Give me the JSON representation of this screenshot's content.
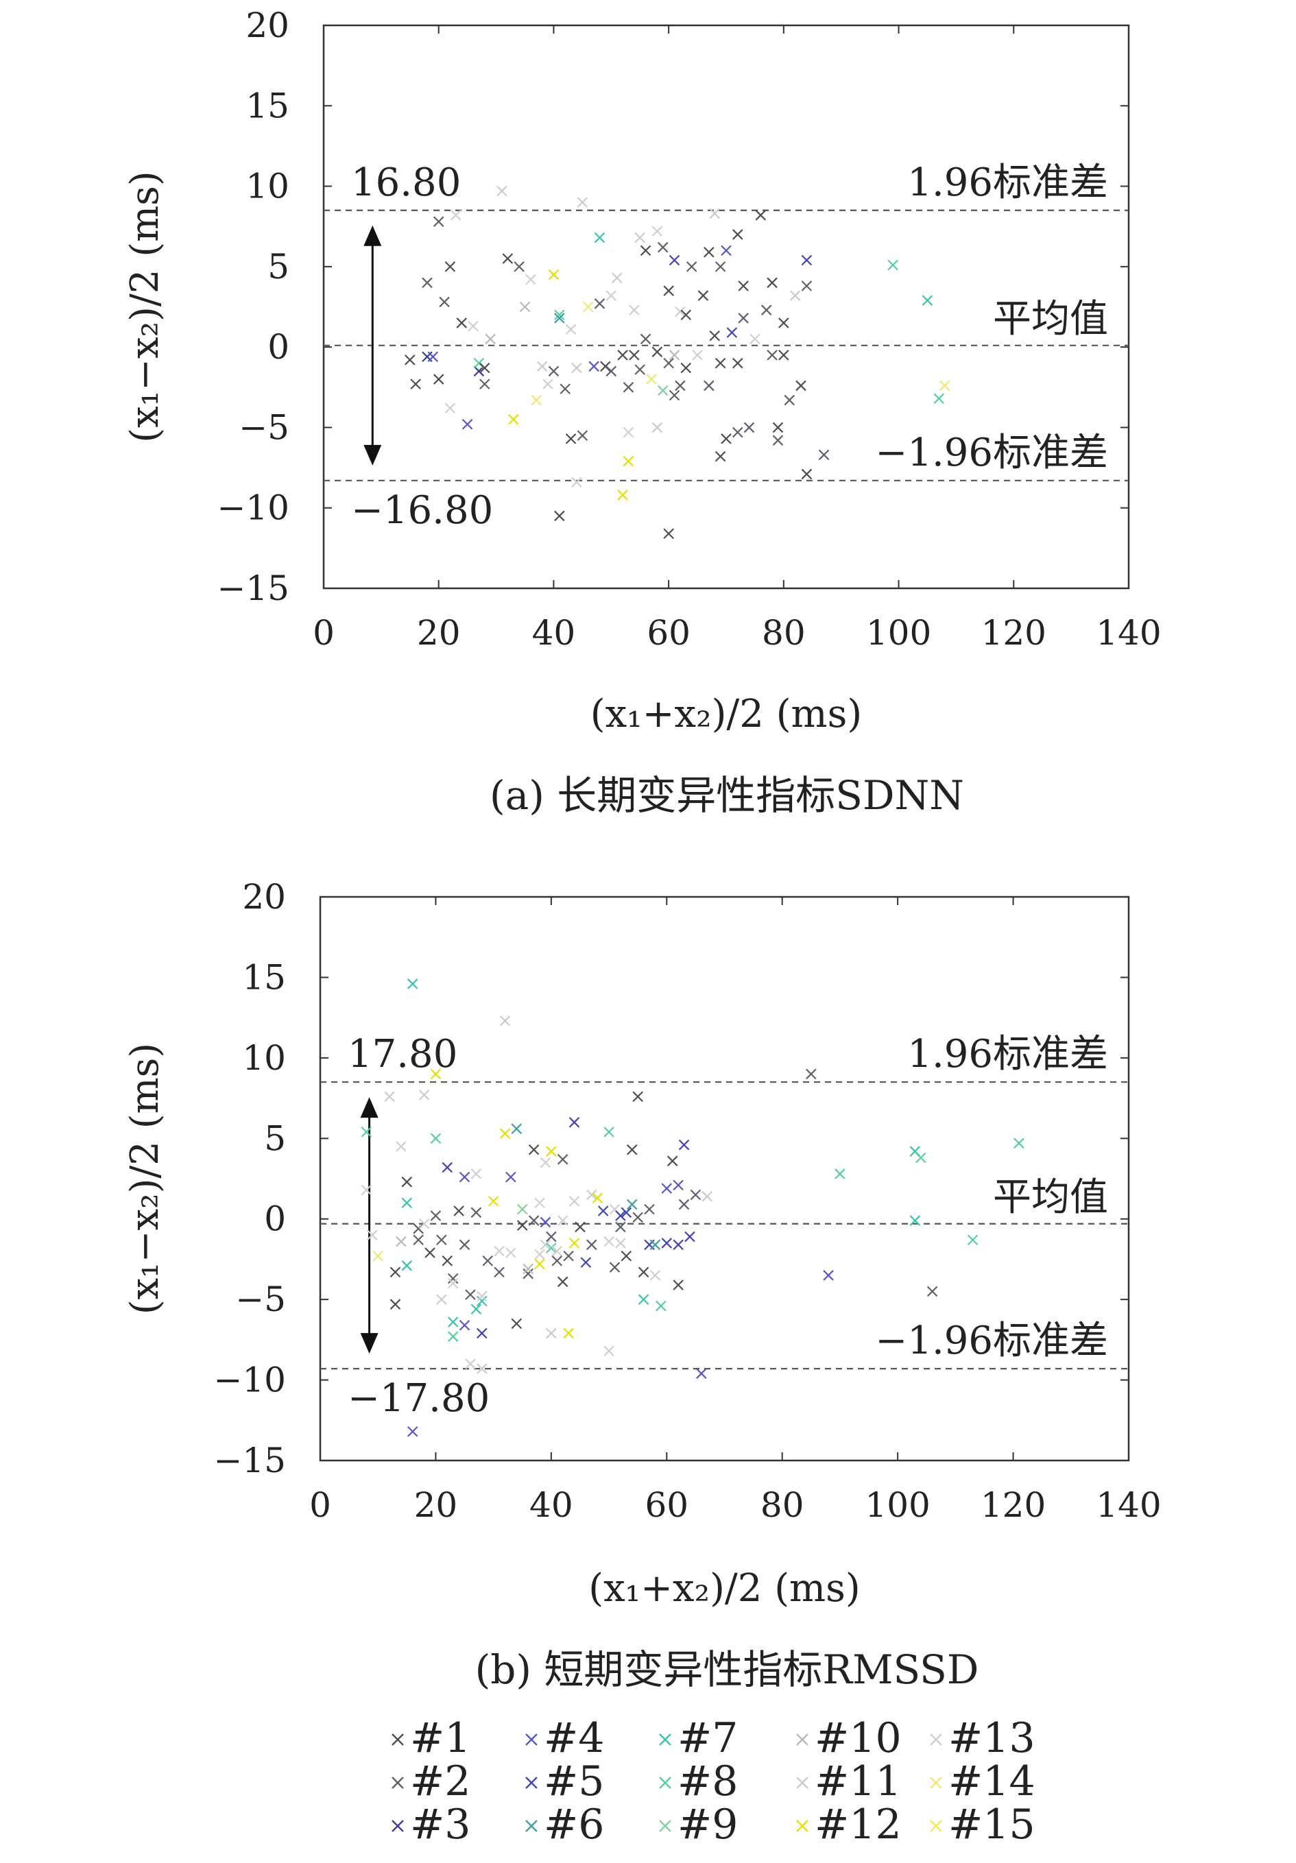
{
  "chart_data": [
    {
      "type": "scatter",
      "caption": "(a) 长期变异性指标SDNN",
      "xlabel": "(x₁+x₂)/2 (ms)",
      "ylabel": "(x₁−x₂)/2 (ms)",
      "xlim": [
        0,
        140
      ],
      "ylim": [
        -15,
        20
      ],
      "xticks": [
        0,
        20,
        40,
        60,
        80,
        100,
        120,
        140
      ],
      "xtick_labels": [
        "0",
        "20",
        "40",
        "60",
        "80",
        "100",
        "120",
        "140"
      ],
      "yticks": [
        -15,
        -10,
        -5,
        0,
        5,
        10,
        15,
        20
      ],
      "ytick_labels": [
        "−15",
        "−10",
        "−5",
        "0",
        "5",
        "10",
        "15",
        "20"
      ],
      "lines": {
        "upper": 8.5,
        "mean": 0.1,
        "lower": -8.3
      },
      "line_labels": {
        "upper": "1.96标准差",
        "mean": "平均值",
        "lower": "−1.96标准差"
      },
      "range_labels": {
        "top": "16.80",
        "bottom": "−16.80"
      },
      "grid": false,
      "points": [
        [
          15,
          -0.8,
          0
        ],
        [
          16,
          -2.3,
          0
        ],
        [
          18,
          4.0,
          1
        ],
        [
          18,
          -0.6,
          2
        ],
        [
          19,
          -0.6,
          3
        ],
        [
          20,
          -2.0,
          0
        ],
        [
          20,
          7.8,
          1
        ],
        [
          21,
          2.8,
          1
        ],
        [
          22,
          5.0,
          0
        ],
        [
          22,
          -3.8,
          12
        ],
        [
          23,
          8.2,
          12
        ],
        [
          24,
          1.5,
          0
        ],
        [
          25,
          -4.8,
          3
        ],
        [
          26,
          1.3,
          12
        ],
        [
          27,
          -1.5,
          2
        ],
        [
          27,
          -1.0,
          7
        ],
        [
          28,
          -2.3,
          1
        ],
        [
          28,
          -1.3,
          0
        ],
        [
          29,
          0.5,
          9
        ],
        [
          31,
          9.7,
          10
        ],
        [
          32,
          5.5,
          0
        ],
        [
          33,
          -4.5,
          11
        ],
        [
          34,
          5.0,
          1
        ],
        [
          35,
          2.5,
          9
        ],
        [
          36,
          4.2,
          12
        ],
        [
          37,
          -3.3,
          13
        ],
        [
          38,
          -1.2,
          10
        ],
        [
          39,
          -2.3,
          12
        ],
        [
          40,
          4.5,
          11
        ],
        [
          40,
          -1.5,
          1
        ],
        [
          41,
          -10.5,
          0
        ],
        [
          41,
          2.0,
          7
        ],
        [
          41,
          1.8,
          5
        ],
        [
          42,
          -2.6,
          1
        ],
        [
          43,
          -5.7,
          0
        ],
        [
          43,
          1.1,
          12
        ],
        [
          44,
          -1.3,
          10
        ],
        [
          44,
          -8.4,
          12
        ],
        [
          45,
          9.0,
          10
        ],
        [
          45,
          -5.5,
          1
        ],
        [
          46,
          2.5,
          13
        ],
        [
          47,
          -1.2,
          3
        ],
        [
          48,
          6.8,
          6
        ],
        [
          48,
          2.7,
          1
        ],
        [
          49,
          -1.2,
          0
        ],
        [
          50,
          3.2,
          12
        ],
        [
          50,
          -1.5,
          1
        ],
        [
          51,
          4.3,
          10
        ],
        [
          52,
          -0.5,
          0
        ],
        [
          52,
          -9.2,
          11
        ],
        [
          53,
          -2.5,
          1
        ],
        [
          53,
          -5.3,
          12
        ],
        [
          53,
          -7.1,
          11
        ],
        [
          54,
          -0.5,
          0
        ],
        [
          54,
          2.3,
          12
        ],
        [
          55,
          6.8,
          10
        ],
        [
          55,
          -1.4,
          1
        ],
        [
          56,
          6.0,
          0
        ],
        [
          56,
          0.5,
          1
        ],
        [
          57,
          -2.0,
          13
        ],
        [
          58,
          -5.0,
          10
        ],
        [
          58,
          -0.3,
          0
        ],
        [
          58,
          7.2,
          12
        ],
        [
          59,
          -2.7,
          8
        ],
        [
          59,
          6.2,
          1
        ],
        [
          60,
          -1.0,
          1
        ],
        [
          60,
          -11.6,
          0
        ],
        [
          60,
          3.5,
          0
        ],
        [
          61,
          5.4,
          4
        ],
        [
          61,
          -0.5,
          9
        ],
        [
          61,
          -3.0,
          1
        ],
        [
          62,
          -2.4,
          1
        ],
        [
          62,
          2.2,
          12
        ],
        [
          63,
          -1.3,
          0
        ],
        [
          63,
          2.0,
          0
        ],
        [
          64,
          5.0,
          1
        ],
        [
          65,
          -0.5,
          12
        ],
        [
          66,
          3.2,
          0
        ],
        [
          67,
          5.9,
          0
        ],
        [
          67,
          -2.4,
          1
        ],
        [
          68,
          8.3,
          10
        ],
        [
          68,
          0.7,
          0
        ],
        [
          69,
          5.0,
          1
        ],
        [
          69,
          -6.8,
          0
        ],
        [
          69,
          -1.0,
          0
        ],
        [
          70,
          -5.7,
          0
        ],
        [
          70,
          6.0,
          3
        ],
        [
          71,
          0.9,
          4
        ],
        [
          72,
          -5.3,
          1
        ],
        [
          72,
          7.0,
          0
        ],
        [
          72,
          -1.0,
          0
        ],
        [
          73,
          3.8,
          0
        ],
        [
          73,
          1.8,
          1
        ],
        [
          74,
          -5.0,
          1
        ],
        [
          75,
          0.5,
          12
        ],
        [
          76,
          8.2,
          0
        ],
        [
          77,
          2.3,
          1
        ],
        [
          78,
          4.0,
          0
        ],
        [
          78,
          -0.5,
          1
        ],
        [
          79,
          -5.0,
          0
        ],
        [
          79,
          -5.8,
          1
        ],
        [
          80,
          -0.5,
          0
        ],
        [
          80,
          1.5,
          0
        ],
        [
          81,
          -3.3,
          1
        ],
        [
          82,
          3.2,
          10
        ],
        [
          83,
          -2.4,
          0
        ],
        [
          84,
          3.8,
          1
        ],
        [
          84,
          -7.9,
          0
        ],
        [
          84,
          5.4,
          4
        ],
        [
          87,
          -6.7,
          1
        ],
        [
          99,
          5.1,
          7
        ],
        [
          105,
          2.9,
          6
        ],
        [
          107,
          -3.2,
          7
        ],
        [
          108,
          -2.4,
          13
        ]
      ]
    },
    {
      "type": "scatter",
      "caption": "(b) 短期变异性指标RMSSD",
      "xlabel": "(x₁+x₂)/2 (ms)",
      "ylabel": "(x₁−x₂)/2 (ms)",
      "xlim": [
        0,
        140
      ],
      "ylim": [
        -15,
        20
      ],
      "xticks": [
        0,
        20,
        40,
        60,
        80,
        100,
        120,
        140
      ],
      "xtick_labels": [
        "0",
        "20",
        "40",
        "60",
        "80",
        "100",
        "120",
        "140"
      ],
      "yticks": [
        -15,
        -10,
        -5,
        0,
        5,
        10,
        15,
        20
      ],
      "ytick_labels": [
        "−15",
        "−10",
        "−5",
        "0",
        "5",
        "10",
        "15",
        "20"
      ],
      "lines": {
        "upper": 8.5,
        "mean": -0.3,
        "lower": -9.3
      },
      "line_labels": {
        "upper": "1.96标准差",
        "mean": "平均值",
        "lower": "−1.96标准差"
      },
      "range_labels": {
        "top": "17.80",
        "bottom": "−17.80"
      },
      "grid": false,
      "points": [
        [
          8,
          5.4,
          7
        ],
        [
          8,
          1.8,
          12
        ],
        [
          9,
          -1.0,
          12
        ],
        [
          10,
          -2.3,
          13
        ],
        [
          12,
          7.6,
          10
        ],
        [
          13,
          -3.3,
          0
        ],
        [
          13,
          -5.3,
          0
        ],
        [
          14,
          -1.4,
          9
        ],
        [
          14,
          4.5,
          12
        ],
        [
          15,
          2.3,
          0
        ],
        [
          15,
          1.0,
          6
        ],
        [
          15,
          -2.9,
          6
        ],
        [
          16,
          -13.2,
          3
        ],
        [
          16,
          14.6,
          6
        ],
        [
          17,
          -0.6,
          1
        ],
        [
          17,
          -1.3,
          1
        ],
        [
          18,
          7.7,
          10
        ],
        [
          18,
          -0.3,
          12
        ],
        [
          19,
          -2.1,
          0
        ],
        [
          20,
          0.2,
          1
        ],
        [
          20,
          5.0,
          7
        ],
        [
          20,
          9.0,
          11
        ],
        [
          21,
          -5.0,
          10
        ],
        [
          21,
          -1.3,
          1
        ],
        [
          22,
          -2.6,
          0
        ],
        [
          22,
          3.2,
          4
        ],
        [
          23,
          -3.7,
          1
        ],
        [
          23,
          -4.0,
          12
        ],
        [
          23,
          -6.4,
          6
        ],
        [
          23,
          -7.3,
          7
        ],
        [
          24,
          0.5,
          0
        ],
        [
          25,
          -1.6,
          1
        ],
        [
          25,
          2.6,
          3
        ],
        [
          25,
          -6.6,
          3
        ],
        [
          26,
          -4.7,
          1
        ],
        [
          26,
          -9.0,
          12
        ],
        [
          27,
          2.8,
          12
        ],
        [
          27,
          0.4,
          1
        ],
        [
          27,
          -5.6,
          6
        ],
        [
          28,
          -5.1,
          6
        ],
        [
          28,
          -7.1,
          4
        ],
        [
          28,
          -4.8,
          12
        ],
        [
          28,
          -9.3,
          10
        ],
        [
          29,
          -2.6,
          1
        ],
        [
          30,
          1.1,
          11
        ],
        [
          31,
          -2.0,
          12
        ],
        [
          31,
          -3.3,
          1
        ],
        [
          32,
          12.3,
          10
        ],
        [
          32,
          5.3,
          11
        ],
        [
          33,
          -2.1,
          12
        ],
        [
          33,
          2.6,
          3
        ],
        [
          34,
          -6.5,
          0
        ],
        [
          34,
          5.6,
          5
        ],
        [
          35,
          -0.4,
          0
        ],
        [
          35,
          0.6,
          8
        ],
        [
          36,
          -3.4,
          1
        ],
        [
          36,
          -3.1,
          9
        ],
        [
          37,
          4.3,
          0
        ],
        [
          37,
          -0.1,
          1
        ],
        [
          38,
          1.0,
          12
        ],
        [
          38,
          -2.2,
          12
        ],
        [
          38,
          -2.8,
          11
        ],
        [
          39,
          -0.2,
          3
        ],
        [
          39,
          -1.6,
          12
        ],
        [
          39,
          3.5,
          12
        ],
        [
          40,
          -1.1,
          1
        ],
        [
          40,
          -7.1,
          10
        ],
        [
          40,
          -1.8,
          7
        ],
        [
          40,
          4.2,
          11
        ],
        [
          41,
          -2.0,
          12
        ],
        [
          41,
          -2.6,
          1
        ],
        [
          42,
          -3.9,
          0
        ],
        [
          42,
          3.7,
          1
        ],
        [
          42,
          -0.1,
          12
        ],
        [
          43,
          -7.1,
          11
        ],
        [
          43,
          -2.3,
          1
        ],
        [
          44,
          6.0,
          4
        ],
        [
          44,
          1.1,
          12
        ],
        [
          44,
          -1.5,
          11
        ],
        [
          45,
          -0.5,
          0
        ],
        [
          46,
          -2.7,
          4
        ],
        [
          47,
          -1.6,
          1
        ],
        [
          47,
          1.5,
          10
        ],
        [
          48,
          1.3,
          11
        ],
        [
          49,
          0.5,
          4
        ],
        [
          50,
          -8.2,
          12
        ],
        [
          50,
          5.4,
          7
        ],
        [
          50,
          -1.4,
          12
        ],
        [
          51,
          -3.0,
          1
        ],
        [
          51,
          0.6,
          12
        ],
        [
          52,
          0.2,
          4
        ],
        [
          52,
          -0.5,
          1
        ],
        [
          52,
          -1.5,
          12
        ],
        [
          53,
          0.4,
          4
        ],
        [
          53,
          -2.3,
          0
        ],
        [
          54,
          0.9,
          5
        ],
        [
          54,
          4.3,
          0
        ],
        [
          55,
          7.6,
          0
        ],
        [
          55,
          0.1,
          1
        ],
        [
          56,
          -3.3,
          0
        ],
        [
          56,
          -5.0,
          6
        ],
        [
          57,
          -1.6,
          4
        ],
        [
          57,
          0.6,
          1
        ],
        [
          58,
          -3.5,
          12
        ],
        [
          58,
          -1.6,
          5
        ],
        [
          59,
          -5.4,
          7
        ],
        [
          60,
          1.9,
          3
        ],
        [
          60,
          -1.5,
          4
        ],
        [
          61,
          3.6,
          0
        ],
        [
          62,
          2.1,
          3
        ],
        [
          62,
          -1.6,
          4
        ],
        [
          62,
          -4.1,
          0
        ],
        [
          63,
          4.6,
          4
        ],
        [
          63,
          0.9,
          1
        ],
        [
          64,
          -1.1,
          4
        ],
        [
          65,
          1.5,
          1
        ],
        [
          66,
          -9.6,
          3
        ],
        [
          67,
          1.4,
          10
        ],
        [
          85,
          9.0,
          1
        ],
        [
          88,
          -3.5,
          3
        ],
        [
          90,
          2.8,
          7
        ],
        [
          103,
          4.2,
          6
        ],
        [
          103,
          -0.1,
          6
        ],
        [
          104,
          3.8,
          7
        ],
        [
          106,
          -4.5,
          1
        ],
        [
          113,
          -1.3,
          7
        ],
        [
          121,
          4.7,
          7
        ]
      ]
    }
  ],
  "legend": {
    "items": [
      "#1",
      "#2",
      "#3",
      "#4",
      "#5",
      "#6",
      "#7",
      "#8",
      "#9",
      "#10",
      "#11",
      "#12",
      "#13",
      "#14",
      "#15"
    ],
    "colors": [
      "#4d4d4d",
      "#5f5f6f",
      "#3b3ba0",
      "#5656c8",
      "#4444b8",
      "#3fa0a0",
      "#36c4b0",
      "#56d0a0",
      "#7ed29a",
      "#b8b8b8",
      "#cbcbcb",
      "#e8e000",
      "#d0d0d0",
      "#f0e870",
      "#f4ec50"
    ]
  }
}
